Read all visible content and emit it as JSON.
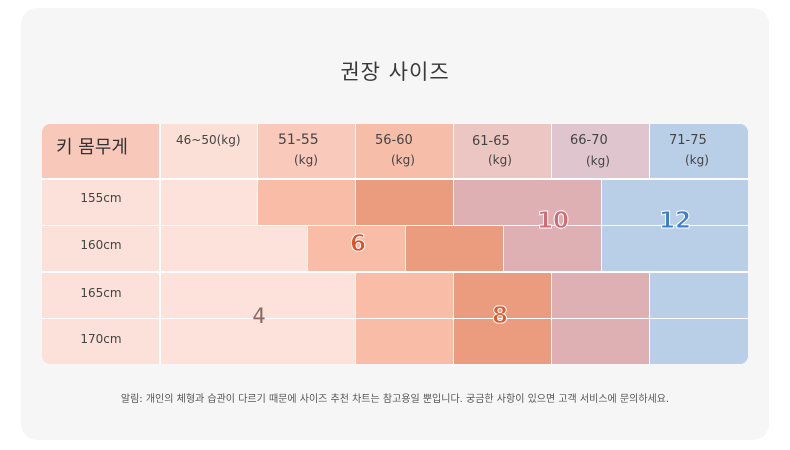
{
  "title": "권장 사이즈",
  "table": {
    "corner_label": "키 몸무게",
    "weights": [
      {
        "range": "46~50(kg)",
        "unit": ""
      },
      {
        "range": "51-55",
        "unit": "(kg)"
      },
      {
        "range": "56-60",
        "unit": "(kg)"
      },
      {
        "range": "61-65",
        "unit": "(kg)"
      },
      {
        "range": "66-70",
        "unit": "(kg)"
      },
      {
        "range": "71-75",
        "unit": "(kg)"
      }
    ],
    "heights": [
      "155cm",
      "160cm",
      "165cm",
      "170cm"
    ],
    "sizes": {
      "s4": "4",
      "s6": "6",
      "s8": "8",
      "s10": "10",
      "s12": "12"
    }
  },
  "colors": {
    "pale_peach": "#fce2da",
    "peach": "#f8bca7",
    "salmon": "#eb9c7e",
    "rose": "#dfb0b3",
    "blue": "#b8cfe7",
    "size4_text": "#8a6a63",
    "size6_text": "#e0512a",
    "size8_text": "#e05a30",
    "size10_text": "#d06a73",
    "size12_text": "#3f7fc8"
  },
  "footer": "알림: 개인의 체형과 습관이 다르기 때문에 사이즈 추천 차트는 참고용일 뿐입니다. 궁금한 사항이 있으면 고객 서비스에 문의하세요."
}
